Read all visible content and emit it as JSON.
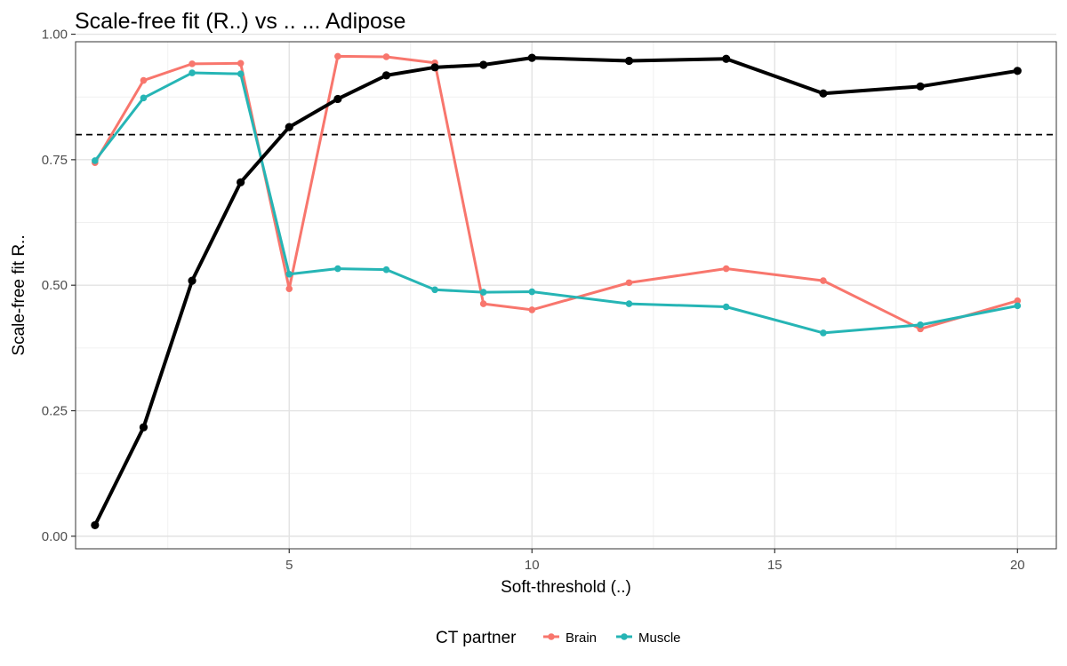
{
  "chart_data": {
    "type": "line",
    "title": "Scale-free fit (R..) vs .. ... Adipose",
    "xlabel": "Soft-threshold (..)",
    "ylabel": "Scale-free fit R..",
    "xlim": [
      0.6,
      20.8
    ],
    "ylim": [
      -0.025,
      0.985
    ],
    "x_ticks": [
      5,
      10,
      15,
      20
    ],
    "y_ticks": [
      0,
      0.25,
      0.5,
      0.75,
      1.0
    ],
    "x_tick_labels": [
      "5",
      "10",
      "15",
      "20"
    ],
    "y_tick_labels": [
      "0.00",
      "0.25",
      "0.50",
      "0.75",
      "1.00"
    ],
    "x_minor_grid": [
      2.5,
      7.5,
      12.5,
      17.5
    ],
    "y_minor_grid": [
      0.125,
      0.375,
      0.625,
      0.875
    ],
    "grid": true,
    "threshold_line": 0.8,
    "legend": {
      "title": "CT partner",
      "position": "bottom"
    },
    "series": [
      {
        "key": "adipose",
        "color": "#000000",
        "in_legend": false,
        "x": [
          1,
          2,
          3,
          4,
          5,
          6,
          7,
          8,
          9,
          10,
          12,
          14,
          16,
          18,
          20
        ],
        "y": [
          0.022,
          0.217,
          0.509,
          0.705,
          0.815,
          0.871,
          0.918,
          0.934,
          0.939,
          0.953,
          0.947,
          0.951,
          0.882,
          0.896,
          0.927
        ]
      },
      {
        "key": "brain",
        "name": "Brain",
        "color": "#F8766D",
        "in_legend": true,
        "x": [
          1,
          2,
          3,
          4,
          5,
          6,
          7,
          8,
          9,
          10,
          12,
          14,
          16,
          18,
          20
        ],
        "y": [
          0.744,
          0.908,
          0.941,
          0.942,
          0.493,
          0.956,
          0.955,
          0.943,
          0.463,
          0.451,
          0.505,
          0.533,
          0.509,
          0.413,
          0.469
        ]
      },
      {
        "key": "muscle",
        "name": "Muscle",
        "color": "#26B5B5",
        "in_legend": true,
        "x": [
          1,
          2,
          3,
          4,
          5,
          6,
          7,
          8,
          9,
          10,
          12,
          14,
          16,
          18,
          20
        ],
        "y": [
          0.748,
          0.873,
          0.923,
          0.921,
          0.522,
          0.533,
          0.531,
          0.491,
          0.486,
          0.487,
          0.463,
          0.457,
          0.405,
          0.421,
          0.459
        ]
      }
    ]
  }
}
